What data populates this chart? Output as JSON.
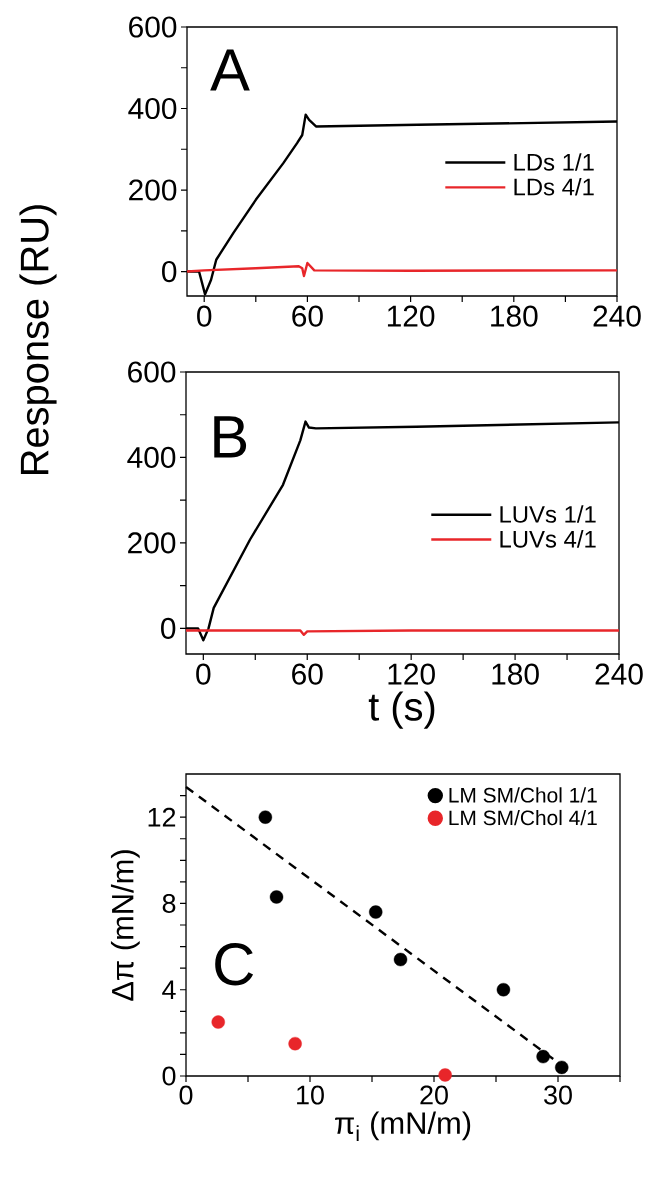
{
  "chart_data": [
    {
      "type": "line",
      "ylabel": "Response (RU)",
      "annotations": [
        "A"
      ],
      "xlim": [
        -10,
        240
      ],
      "ylim": [
        -60,
        600
      ],
      "xticks": [
        0,
        {
          "value": 30,
          "label": null
        },
        60,
        {
          "value": 90,
          "label": null
        },
        120,
        {
          "value": 150,
          "label": null
        },
        180,
        {
          "value": 210,
          "label": null
        },
        240
      ],
      "yticks": [
        0,
        {
          "value": 100,
          "label": null
        },
        200,
        {
          "value": 300,
          "label": null
        },
        400,
        {
          "value": 500,
          "label": null
        },
        600
      ],
      "legend": "right",
      "series": [
        {
          "name": "LDs 1/1",
          "color": "#000000",
          "x": [
            -10,
            -3,
            0.5,
            4,
            7,
            17,
            30,
            46,
            54,
            57,
            59,
            61,
            65,
            124,
            240
          ],
          "values": [
            0,
            0,
            -56,
            -20,
            29,
            95,
            176,
            266,
            315,
            335,
            385,
            372,
            356,
            360,
            368
          ]
        },
        {
          "name": "LDs 4/1",
          "color": "#e8262a",
          "x": [
            -10,
            0,
            30,
            55,
            57,
            58,
            60,
            64,
            120,
            240
          ],
          "values": [
            0,
            3,
            8,
            13,
            8,
            -11,
            21,
            3,
            2,
            3
          ]
        }
      ]
    },
    {
      "type": "line",
      "xlabel": "t (s)",
      "annotations": [
        "B"
      ],
      "xlim": [
        -10,
        240
      ],
      "ylim": [
        -60,
        600
      ],
      "xticks": [
        0,
        {
          "value": 30,
          "label": null
        },
        60,
        {
          "value": 90,
          "label": null
        },
        120,
        {
          "value": 150,
          "label": null
        },
        180,
        {
          "value": 210,
          "label": null
        },
        240
      ],
      "yticks": [
        0,
        {
          "value": 100,
          "label": null
        },
        200,
        {
          "value": 300,
          "label": null
        },
        400,
        {
          "value": 500,
          "label": null
        },
        600
      ],
      "legend": "right",
      "series": [
        {
          "name": "LUVs 1/1",
          "color": "#000000",
          "x": [
            -10,
            -3,
            0,
            3,
            6,
            27,
            46,
            56,
            59,
            61,
            65,
            123,
            240
          ],
          "values": [
            0,
            0,
            -28,
            0,
            48,
            208,
            336,
            440,
            484,
            470,
            468,
            472,
            482
          ]
        },
        {
          "name": "LUVs 4/1",
          "color": "#e8262a",
          "x": [
            -10,
            0,
            30,
            56,
            58,
            60,
            120,
            240
          ],
          "values": [
            -5,
            -5,
            -5,
            -5,
            -15,
            -7,
            -5,
            -5
          ]
        }
      ]
    },
    {
      "type": "scatter",
      "xlabel": "π$_{i}$ (mN/m)",
      "ylabel": "Δπ (mN/m)",
      "annotations": [
        "C"
      ],
      "xlim": [
        0,
        35
      ],
      "ylim": [
        0,
        14
      ],
      "xticks": [
        0,
        {
          "value": 5,
          "label": null
        },
        10,
        {
          "value": 15,
          "label": null
        },
        20,
        {
          "value": 25,
          "label": null
        },
        30,
        {
          "value": 35,
          "label": null
        }
      ],
      "yticks": [
        0,
        {
          "value": 1,
          "label": null
        },
        {
          "value": 2,
          "label": null
        },
        {
          "value": 3,
          "label": null
        },
        4,
        {
          "value": 5,
          "label": null
        },
        {
          "value": 6,
          "label": null
        },
        {
          "value": 7,
          "label": null
        },
        8,
        {
          "value": 9,
          "label": null
        },
        {
          "value": 10,
          "label": null
        },
        {
          "value": 11,
          "label": null
        },
        12,
        {
          "value": 13,
          "label": null
        }
      ],
      "legend": "top right",
      "series": [
        {
          "name": "LM SM/Chol  1/1",
          "color": "#000000",
          "marker": "circle",
          "x": [
            6.4,
            7.3,
            15.3,
            17.3,
            25.6,
            28.8,
            30.3
          ],
          "values": [
            12.0,
            8.3,
            7.6,
            5.4,
            4.0,
            0.9,
            0.4
          ]
        },
        {
          "name": "LM SM/Chol  4/1",
          "color": "#e8262a",
          "marker": "circle",
          "x": [
            2.6,
            8.8,
            20.9
          ],
          "values": [
            2.5,
            1.5,
            0.05
          ]
        },
        {
          "type": "line",
          "line_style": "dashed",
          "marker": "none",
          "color": "#000000",
          "x": [
            0,
            31
          ],
          "values": [
            13.4,
            0.2
          ]
        }
      ]
    }
  ]
}
